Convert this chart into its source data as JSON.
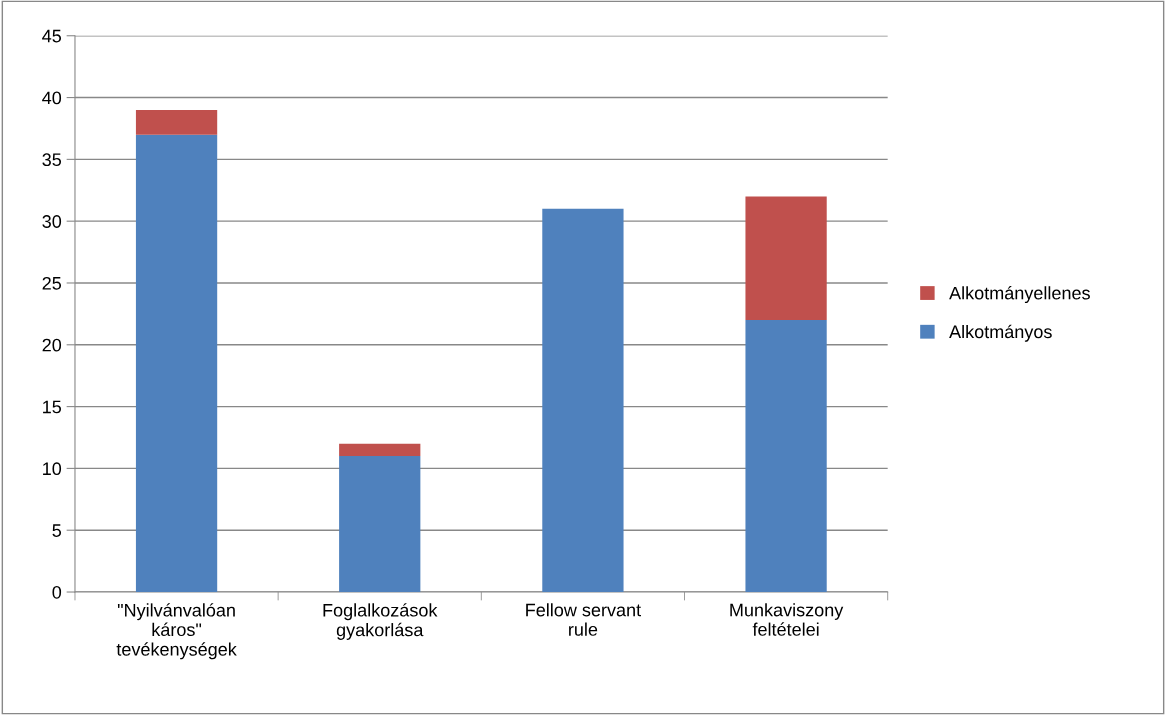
{
  "chart_data": {
    "type": "bar",
    "stacked": true,
    "categories": [
      "\"Nyilvánvalóan\nkáros\"\ntevékenységek",
      "Foglalkozások\ngyakorlása",
      "Fellow servant\nrule",
      "Munkaviszony\nfeltételei"
    ],
    "series": [
      {
        "name": "Alkotmányos",
        "color": "#4f81bd",
        "values": [
          37,
          11,
          31,
          22
        ]
      },
      {
        "name": "Alkotmányellenes",
        "color": "#c0504d",
        "values": [
          2,
          1,
          0,
          10
        ]
      }
    ],
    "ylim": [
      0,
      45
    ],
    "yticks": [
      0,
      5,
      10,
      15,
      20,
      25,
      30,
      35,
      40,
      45
    ],
    "grid": "y",
    "legend": "right"
  }
}
